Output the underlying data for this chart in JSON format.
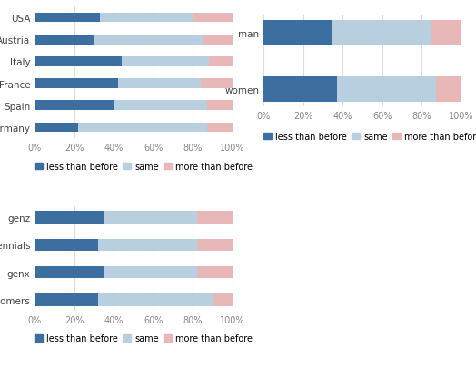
{
  "country_labels": [
    "Germany",
    "Spain",
    "France",
    "Italy",
    "Austria",
    "USA"
  ],
  "country_less": [
    22,
    40,
    42,
    44,
    30,
    33
  ],
  "country_same": [
    65,
    47,
    42,
    44,
    55,
    47
  ],
  "country_more": [
    13,
    13,
    16,
    12,
    15,
    20
  ],
  "gender_labels": [
    "women",
    "man"
  ],
  "gender_less": [
    37,
    35
  ],
  "gender_same": [
    50,
    50
  ],
  "gender_more": [
    13,
    15
  ],
  "age_labels": [
    "boomers",
    "genx",
    "millennials",
    "genz"
  ],
  "age_less": [
    32,
    35,
    32,
    35
  ],
  "age_same": [
    58,
    47,
    50,
    47
  ],
  "age_more": [
    10,
    18,
    18,
    18
  ],
  "color_less": "#3c6fa0",
  "color_same": "#b8cfe0",
  "color_more": "#e8b8b8",
  "legend_labels": [
    "less than before",
    "same",
    "more than before"
  ],
  "bg_color": "#ffffff",
  "grid_color": "#dddddd",
  "label_fontsize": 7.5,
  "legend_fontsize": 7.0,
  "tick_fontsize": 7.0
}
